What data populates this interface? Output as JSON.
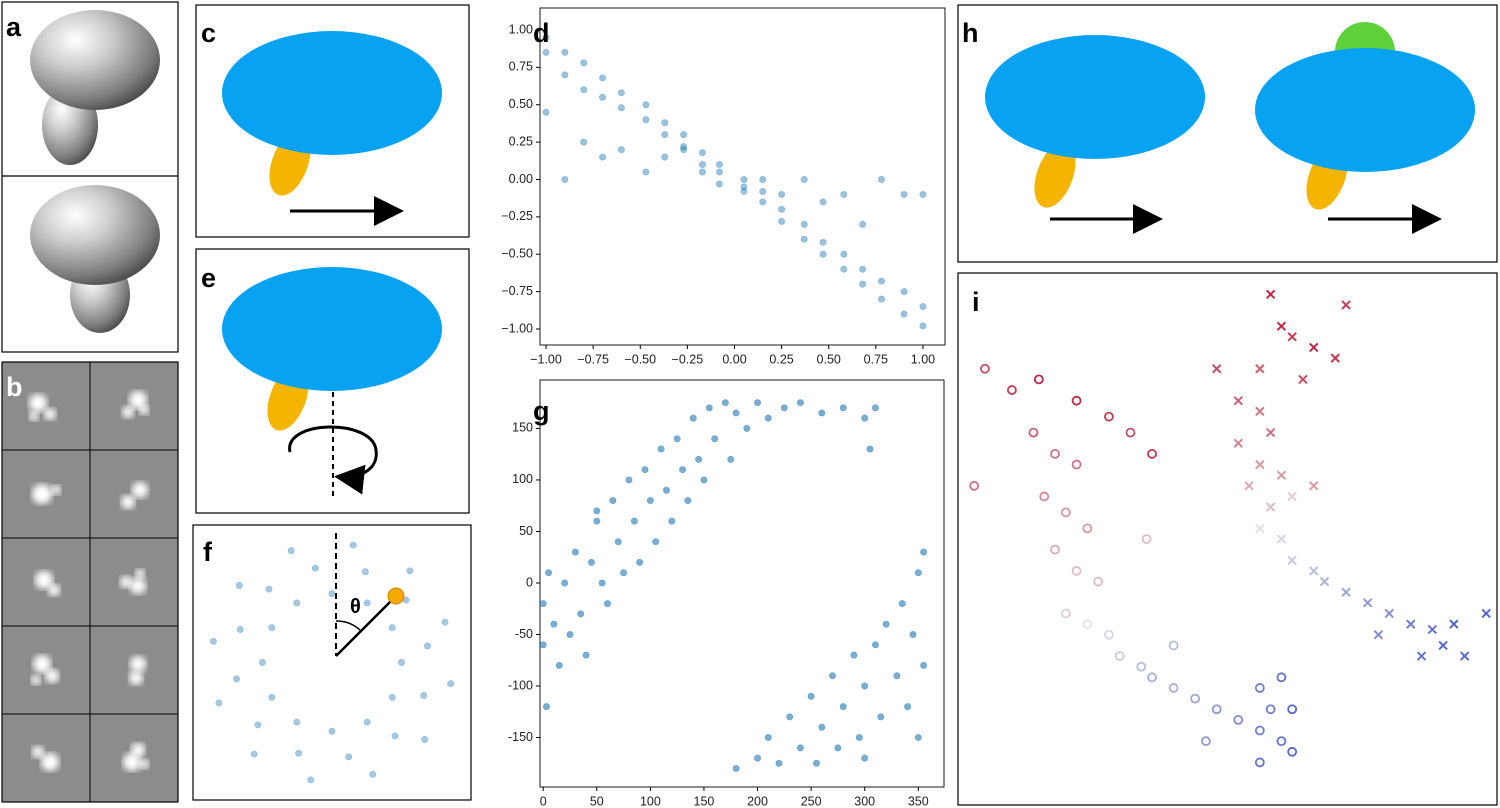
{
  "panel_labels": [
    "a",
    "b",
    "c",
    "d",
    "e",
    "f",
    "g",
    "h",
    "i"
  ],
  "angle_label": "θ",
  "chart_data": [
    {
      "type": "scatter",
      "panel": "d",
      "alpha": 0.45,
      "xlim": [
        -1.032,
        1.117
      ],
      "ylim": [
        -1.107,
        1.147
      ],
      "xticks": [
        {
          "value": -1,
          "label": "−1.00"
        },
        {
          "value": -0.75,
          "label": "−0.75"
        },
        {
          "value": -0.5,
          "label": "−0.50"
        },
        {
          "value": -0.25,
          "label": "−0.25"
        },
        {
          "value": 0,
          "label": "0.00"
        },
        {
          "value": 0.25,
          "label": "0.25"
        },
        {
          "value": 0.5,
          "label": "0.50"
        },
        {
          "value": 0.75,
          "label": "0.75"
        },
        {
          "value": 1,
          "label": "1.00"
        }
      ],
      "yticks": [
        {
          "value": 1,
          "label": "1.00"
        },
        {
          "value": 0.75,
          "label": "0.75"
        },
        {
          "value": 0.5,
          "label": "0.50"
        },
        {
          "value": 0.25,
          "label": "0.25"
        },
        {
          "value": 0,
          "label": "0.00"
        },
        {
          "value": -0.25,
          "label": "−0.25"
        },
        {
          "value": -0.5,
          "label": "−0.50"
        },
        {
          "value": -0.75,
          "label": "−0.75"
        },
        {
          "value": -1,
          "label": "−1.00"
        }
      ],
      "series": [
        {
          "color": "#1f77b4",
          "marker": "o",
          "x": [
            -1,
            -1,
            -1,
            -0.9,
            -0.9,
            -0.9,
            -0.8,
            -0.8,
            -0.8,
            -0.7,
            -0.7,
            -0.7,
            -0.6,
            -0.6,
            -0.6,
            -0.47,
            -0.47,
            -0.47,
            -0.37,
            -0.37,
            -0.37,
            -0.27,
            -0.27,
            -0.27,
            -0.17,
            -0.17,
            -0.17,
            -0.08,
            -0.08,
            -0.08,
            0.05,
            0.05,
            0.05,
            0.15,
            0.15,
            0.15,
            0.25,
            0.25,
            0.25,
            0.37,
            0.37,
            0.37,
            0.47,
            0.47,
            0.47,
            0.58,
            0.58,
            0.58,
            0.68,
            0.68,
            0.68,
            0.78,
            0.78,
            0.78,
            0.9,
            0.9,
            0.9,
            1,
            1,
            1
          ],
          "values": [
            0.95,
            0.85,
            0.45,
            0.85,
            0.7,
            0,
            0.78,
            0.6,
            0.25,
            0.68,
            0.55,
            0.15,
            0.58,
            0.48,
            0.2,
            0.5,
            0.4,
            0.05,
            0.38,
            0.3,
            0.15,
            0.3,
            0.22,
            0.2,
            0.18,
            0.1,
            0.05,
            0.1,
            0.05,
            -0.03,
            0,
            -0.05,
            -0.08,
            -0.08,
            -0.15,
            0,
            -0.2,
            -0.28,
            -0.1,
            -0.3,
            -0.4,
            0,
            -0.42,
            -0.5,
            -0.15,
            -0.5,
            -0.6,
            -0.1,
            -0.6,
            -0.7,
            -0.3,
            -0.68,
            -0.8,
            0,
            -0.75,
            -0.9,
            -0.1,
            -0.85,
            -0.98,
            -0.1
          ]
        }
      ]
    },
    {
      "type": "scatter",
      "panel": "g",
      "alpha": 0.6,
      "xlim": [
        -3,
        374
      ],
      "ylim": [
        -198,
        197
      ],
      "xticks": [
        0,
        50,
        100,
        150,
        200,
        250,
        300,
        350
      ],
      "yticks": [
        150,
        100,
        50,
        0,
        -50,
        -100,
        -150
      ],
      "series": [
        {
          "color": "#1f77b4",
          "marker": "o",
          "x": [
            0,
            0,
            3,
            5,
            10,
            15,
            20,
            25,
            30,
            35,
            40,
            45,
            50,
            55,
            60,
            65,
            70,
            75,
            80,
            85,
            90,
            95,
            100,
            105,
            110,
            115,
            120,
            125,
            130,
            135,
            140,
            145,
            150,
            155,
            160,
            170,
            175,
            180,
            190,
            200,
            210,
            225,
            240,
            260,
            280,
            300,
            310,
            50,
            180,
            200,
            210,
            220,
            230,
            240,
            250,
            255,
            260,
            270,
            275,
            280,
            290,
            295,
            300,
            310,
            315,
            320,
            330,
            335,
            340,
            345,
            350,
            355,
            355,
            350,
            300,
            305
          ],
          "values": [
            -60,
            -20,
            -120,
            10,
            -40,
            -80,
            0,
            -50,
            30,
            -30,
            -70,
            20,
            60,
            0,
            -20,
            80,
            40,
            10,
            100,
            60,
            20,
            110,
            80,
            40,
            130,
            90,
            60,
            140,
            110,
            80,
            160,
            120,
            100,
            170,
            140,
            175,
            120,
            165,
            150,
            175,
            160,
            170,
            175,
            165,
            170,
            160,
            170,
            70,
            -180,
            -170,
            -150,
            -175,
            -130,
            -160,
            -110,
            -175,
            -140,
            -90,
            -160,
            -120,
            -70,
            -150,
            -100,
            -60,
            -130,
            -40,
            -90,
            -20,
            -120,
            -50,
            10,
            -80,
            30,
            -150,
            -170,
            130
          ]
        }
      ]
    },
    {
      "type": "scatter",
      "panel": "f",
      "alpha": 0.4,
      "xlim": [
        -1.5,
        1.5
      ],
      "ylim": [
        -1.5,
        1.5
      ],
      "series": [
        {
          "color": "#1f77b4",
          "marker": "o",
          "x": [
            0.75,
            1.03,
            1.22,
            0.65,
            0.8,
            0.84,
            0.38,
            0.36,
            0.23,
            0,
            -0.18,
            -0.44,
            -0.38,
            -0.68,
            -1.0,
            -0.65,
            -0.99,
            -1.28,
            -0.75,
            -1.03,
            -1.22,
            -0.65,
            -0.8,
            -0.84,
            -0.38,
            -0.36,
            -0.23,
            0,
            0.18,
            0.44,
            0.38,
            0.68,
            1.0,
            0.65,
            0.99,
            1.28
          ],
          "values": [
            0,
            0.18,
            0.44,
            0.38,
            0.68,
            1.0,
            0.65,
            0.99,
            1.28,
            0.75,
            1.03,
            1.22,
            0.65,
            0.8,
            0.84,
            0.38,
            0.36,
            0.23,
            0,
            -0.18,
            -0.44,
            -0.38,
            -0.68,
            -1.0,
            -0.65,
            -0.99,
            -1.28,
            -0.75,
            -1.03,
            -1.22,
            -0.65,
            -0.8,
            -0.84,
            -0.38,
            -0.36,
            -0.23
          ]
        }
      ]
    },
    {
      "type": "scatter",
      "panel": "i",
      "alpha": 0.85,
      "cmap": "coolwarm",
      "xlim": [
        0,
        100
      ],
      "ylim": [
        0,
        100
      ],
      "series": [
        {
          "marker": "open-circle",
          "x": [
            10,
            15,
            22,
            28,
            32,
            36,
            14,
            18,
            22,
            16,
            20,
            24,
            18,
            22,
            26,
            20,
            24,
            28,
            30,
            34,
            36,
            40,
            44,
            48,
            52,
            56,
            58,
            60,
            62,
            56,
            60,
            5,
            3,
            35,
            46,
            40,
            56,
            62
          ],
          "values": [
            78,
            80,
            76,
            73,
            70,
            66,
            70,
            66,
            64,
            58,
            55,
            52,
            48,
            44,
            42,
            36,
            34,
            32,
            28,
            26,
            24,
            22,
            20,
            18,
            16,
            14,
            18,
            12,
            10,
            22,
            24,
            82,
            60,
            50,
            12,
            30,
            8,
            18
          ],
          "c": [
            0.95,
            1,
            1,
            0.95,
            0.9,
            0.95,
            0.85,
            0.8,
            0.8,
            0.75,
            0.7,
            0.7,
            0.65,
            0.6,
            0.6,
            0.55,
            0.5,
            0.45,
            0.4,
            0.35,
            0.3,
            0.3,
            0.25,
            0.2,
            0.15,
            0.1,
            0.1,
            0.05,
            0,
            0.1,
            0.05,
            0.9,
            0.8,
            0.6,
            0.2,
            0.35,
            0.05,
            0
          ]
        },
        {
          "marker": "cross",
          "x": [
            58,
            60,
            62,
            66,
            70,
            64,
            56,
            52,
            56,
            58,
            52,
            56,
            60,
            54,
            58,
            62,
            56,
            60,
            62,
            66,
            68,
            72,
            76,
            80,
            84,
            88,
            90,
            86,
            92,
            94,
            78,
            48,
            72,
            66,
            98
          ],
          "values": [
            96,
            90,
            88,
            86,
            84,
            80,
            82,
            76,
            74,
            70,
            68,
            64,
            62,
            60,
            56,
            58,
            52,
            50,
            46,
            44,
            42,
            40,
            38,
            36,
            34,
            33,
            30,
            28,
            34,
            28,
            32,
            82,
            94,
            60,
            36
          ],
          "c": [
            1,
            1,
            0.95,
            1,
            0.95,
            0.9,
            0.85,
            0.85,
            0.8,
            0.8,
            0.75,
            0.7,
            0.7,
            0.65,
            0.6,
            0.55,
            0.5,
            0.45,
            0.4,
            0.35,
            0.3,
            0.25,
            0.2,
            0.15,
            0.1,
            0.05,
            0,
            0.05,
            0,
            0,
            0.15,
            0.9,
            0.95,
            0.7,
            0
          ]
        }
      ]
    }
  ]
}
